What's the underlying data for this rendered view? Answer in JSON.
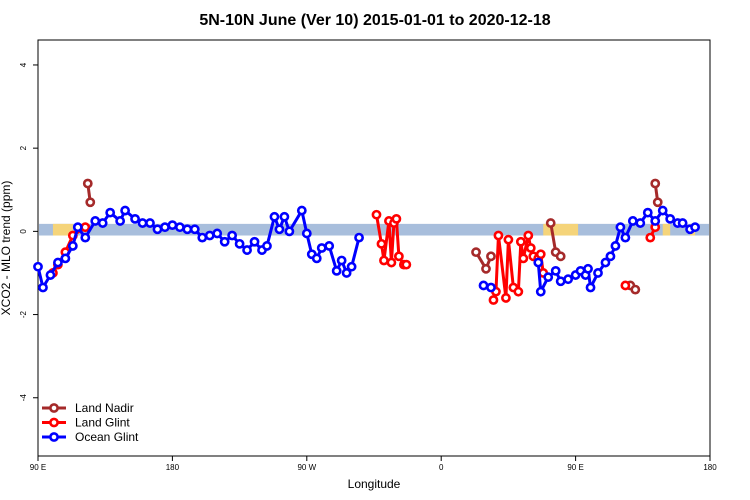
{
  "chart_data": {
    "type": "line",
    "title": "5N-10N June (Ver 10)   2015-01-01 to 2020-12-18",
    "xlabel": "Longitude",
    "ylabel": "XCO2 - MLO trend (ppm)",
    "xlim": [
      -90,
      180
    ],
    "ylim": [
      -5.4,
      4.6
    ],
    "x_ticks": [
      {
        "value": -90,
        "label": "90 E"
      },
      {
        "value": -36,
        "label": "180"
      },
      {
        "value": 18,
        "label": "90 W"
      },
      {
        "value": 72,
        "label": "0"
      },
      {
        "value": 126,
        "label": "90 E"
      },
      {
        "value": 180,
        "label": "180"
      }
    ],
    "y_ticks": [
      -4,
      -2,
      0,
      2,
      4
    ],
    "band": {
      "ymin": -0.1,
      "ymax": 0.18,
      "ocean_color": "#a8bedc",
      "land_color": "#f5d47a",
      "land_ranges": [
        [
          -84,
          -76
        ],
        [
          113,
          127
        ],
        [
          161,
          164
        ],
        [
          172,
          174
        ]
      ]
    },
    "legend": {
      "position": "bottom-left"
    },
    "series": [
      {
        "name": "Land Nadir",
        "color": "#a52a2a",
        "segments": [
          [
            [
              -70,
              1.15
            ],
            [
              -69,
              0.7
            ]
          ],
          [
            [
              86,
              -0.5
            ],
            [
              90,
              -0.9
            ],
            [
              92,
              -0.6
            ]
          ],
          [
            [
              116,
              0.2
            ],
            [
              118,
              -0.5
            ],
            [
              120,
              -0.6
            ]
          ],
          [
            [
              148,
              -1.3
            ],
            [
              150,
              -1.4
            ]
          ],
          [
            [
              158,
              1.15
            ],
            [
              159,
              0.7
            ]
          ]
        ]
      },
      {
        "name": "Land Glint",
        "color": "#ff0000",
        "segments": [
          [
            [
              -84,
              -1.0
            ],
            [
              -82,
              -0.8
            ],
            [
              -79,
              -0.5
            ],
            [
              -76,
              -0.1
            ],
            [
              -71,
              0.1
            ]
          ],
          [
            [
              46,
              0.4
            ],
            [
              48,
              -0.3
            ],
            [
              49,
              -0.7
            ],
            [
              51,
              0.25
            ],
            [
              52,
              -0.75
            ],
            [
              53,
              0.2
            ],
            [
              54,
              0.3
            ],
            [
              55,
              -0.6
            ],
            [
              57,
              -0.8
            ],
            [
              58,
              -0.8
            ]
          ],
          [
            [
              93,
              -1.65
            ],
            [
              94,
              -1.45
            ],
            [
              95,
              -0.1
            ],
            [
              98,
              -1.6
            ],
            [
              99,
              -0.2
            ],
            [
              101,
              -1.35
            ],
            [
              103,
              -1.45
            ],
            [
              104,
              -0.25
            ],
            [
              105,
              -0.65
            ],
            [
              107,
              -0.1
            ],
            [
              108,
              -0.4
            ],
            [
              109,
              -0.6
            ],
            [
              111,
              -0.65
            ],
            [
              112,
              -0.55
            ],
            [
              113,
              -1.0
            ]
          ],
          [
            [
              146,
              -1.3
            ]
          ],
          [
            [
              156,
              -0.15
            ],
            [
              158,
              0.1
            ]
          ]
        ]
      },
      {
        "name": "Ocean Glint",
        "color": "#0000ff",
        "segments": [
          [
            [
              -90,
              -0.85
            ],
            [
              -88,
              -1.35
            ],
            [
              -85,
              -1.05
            ],
            [
              -82,
              -0.75
            ],
            [
              -79,
              -0.65
            ],
            [
              -76,
              -0.35
            ],
            [
              -74,
              0.1
            ],
            [
              -71,
              -0.15
            ],
            [
              -67,
              0.25
            ],
            [
              -64,
              0.2
            ],
            [
              -61,
              0.45
            ],
            [
              -57,
              0.25
            ],
            [
              -55,
              0.5
            ],
            [
              -51,
              0.3
            ],
            [
              -48,
              0.2
            ],
            [
              -45,
              0.2
            ],
            [
              -42,
              0.05
            ],
            [
              -39,
              0.1
            ],
            [
              -36,
              0.15
            ],
            [
              -33,
              0.1
            ],
            [
              -30,
              0.05
            ],
            [
              -27,
              0.05
            ],
            [
              -24,
              -0.15
            ],
            [
              -21,
              -0.1
            ],
            [
              -18,
              -0.05
            ],
            [
              -15,
              -0.25
            ],
            [
              -12,
              -0.1
            ],
            [
              -9,
              -0.3
            ],
            [
              -6,
              -0.45
            ],
            [
              -3,
              -0.25
            ],
            [
              0,
              -0.45
            ],
            [
              2,
              -0.35
            ],
            [
              5,
              0.35
            ],
            [
              7,
              0.05
            ],
            [
              9,
              0.35
            ],
            [
              11,
              0.0
            ],
            [
              16,
              0.5
            ],
            [
              18,
              -0.05
            ],
            [
              20,
              -0.55
            ],
            [
              22,
              -0.65
            ],
            [
              24,
              -0.4
            ],
            [
              27,
              -0.35
            ],
            [
              30,
              -0.95
            ],
            [
              32,
              -0.7
            ],
            [
              34,
              -1.0
            ],
            [
              36,
              -0.85
            ],
            [
              39,
              -0.15
            ]
          ],
          [
            [
              89,
              -1.3
            ],
            [
              92,
              -1.35
            ]
          ],
          [
            [
              111,
              -0.75
            ],
            [
              112,
              -1.45
            ],
            [
              115,
              -1.1
            ],
            [
              118,
              -0.95
            ],
            [
              120,
              -1.2
            ],
            [
              123,
              -1.15
            ],
            [
              126,
              -1.05
            ],
            [
              128,
              -0.95
            ],
            [
              130,
              -1.05
            ],
            [
              131,
              -0.9
            ],
            [
              132,
              -1.35
            ],
            [
              135,
              -1.0
            ],
            [
              138,
              -0.75
            ],
            [
              140,
              -0.6
            ],
            [
              142,
              -0.35
            ],
            [
              144,
              0.1
            ],
            [
              146,
              -0.15
            ],
            [
              149,
              0.25
            ],
            [
              152,
              0.2
            ],
            [
              155,
              0.45
            ],
            [
              158,
              0.25
            ],
            [
              161,
              0.5
            ],
            [
              164,
              0.3
            ],
            [
              167,
              0.2
            ],
            [
              169,
              0.2
            ],
            [
              172,
              0.05
            ],
            [
              174,
              0.1
            ]
          ]
        ]
      }
    ]
  }
}
